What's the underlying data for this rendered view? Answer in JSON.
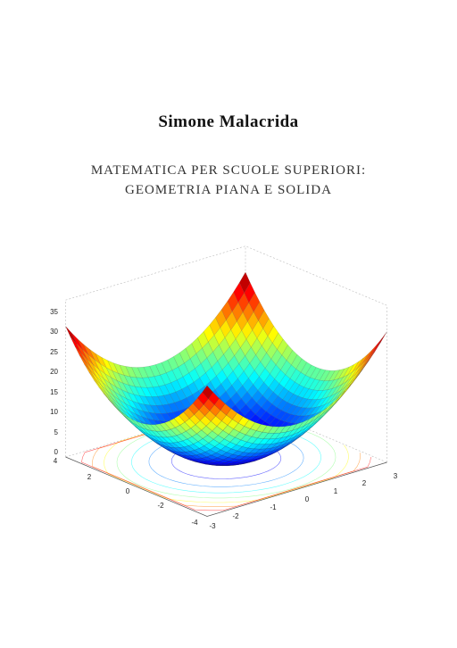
{
  "author": "Simone Malacrida",
  "title_lines": [
    "MATEMATICA PER SCUOLE SUPERIORI:",
    "GEOMETRIA PIANA E SOLIDA"
  ],
  "figure": {
    "z_ticks": [
      "35",
      "30",
      "25",
      "20",
      "15",
      "10",
      "5",
      "0"
    ],
    "left_axis_ticks": [
      "4",
      "2",
      "0",
      "-2",
      "-4"
    ],
    "right_axis_ticks": [
      "-3",
      "-2",
      "-1",
      "0",
      "1",
      "2",
      "3"
    ]
  }
}
